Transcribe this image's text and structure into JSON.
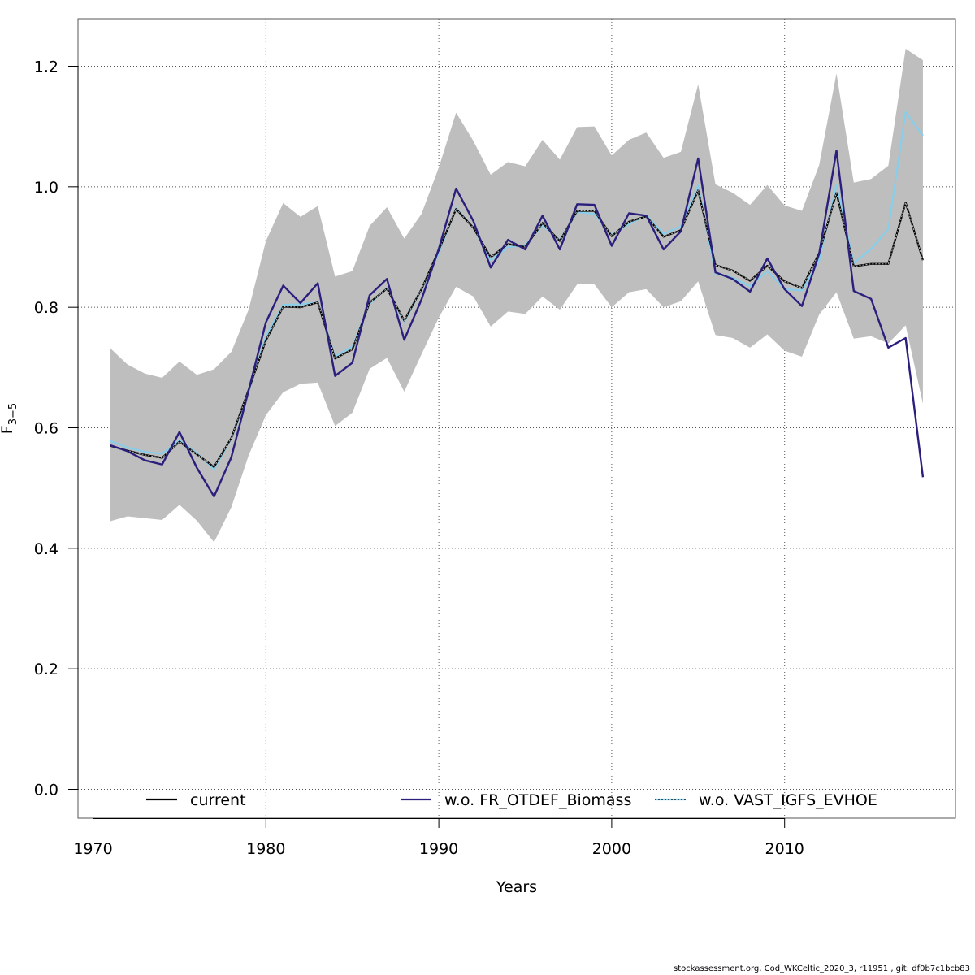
{
  "chart_data": {
    "type": "line",
    "xlabel": "Years",
    "ylabel": "F",
    "ylabel_sub": "3−5",
    "xlim": [
      1970,
      2020
    ],
    "ylim": [
      0.0,
      1.25
    ],
    "x_ticks": [
      1970,
      1980,
      1990,
      2000,
      2010
    ],
    "x_tick_labels": [
      "1970",
      "1980",
      "1990",
      "2000",
      "2010"
    ],
    "y_ticks": [
      0.0,
      0.2,
      0.4,
      0.6,
      0.8,
      1.0,
      1.2
    ],
    "y_tick_labels": [
      "0.0",
      "0.2",
      "0.4",
      "0.6",
      "0.8",
      "1.0",
      "1.2"
    ],
    "grid": true,
    "legend_position": "bottom",
    "x": [
      1971,
      1972,
      1973,
      1974,
      1975,
      1976,
      1977,
      1978,
      1979,
      1980,
      1981,
      1982,
      1983,
      1984,
      1985,
      1986,
      1987,
      1988,
      1989,
      1990,
      1991,
      1992,
      1993,
      1994,
      1995,
      1996,
      1997,
      1998,
      1999,
      2000,
      2001,
      2002,
      2003,
      2004,
      2005,
      2006,
      2007,
      2008,
      2009,
      2010,
      2011,
      2012,
      2013,
      2014,
      2015,
      2016,
      2017,
      2018
    ],
    "band": {
      "color": "#bebebe",
      "upper": [
        0.732,
        0.705,
        0.69,
        0.683,
        0.71,
        0.688,
        0.697,
        0.726,
        0.796,
        0.91,
        0.973,
        0.95,
        0.968,
        0.851,
        0.86,
        0.935,
        0.966,
        0.914,
        0.955,
        1.032,
        1.123,
        1.076,
        1.02,
        1.041,
        1.034,
        1.078,
        1.045,
        1.099,
        1.1,
        1.052,
        1.078,
        1.09,
        1.048,
        1.058,
        1.17,
        1.004,
        0.99,
        0.97,
        1.003,
        0.969,
        0.96,
        1.036,
        1.188,
        1.007,
        1.013,
        1.035,
        1.229,
        1.21
      ],
      "lower": [
        0.445,
        0.453,
        0.45,
        0.447,
        0.472,
        0.446,
        0.41,
        0.468,
        0.554,
        0.621,
        0.659,
        0.673,
        0.675,
        0.603,
        0.625,
        0.698,
        0.716,
        0.66,
        0.722,
        0.783,
        0.834,
        0.818,
        0.768,
        0.793,
        0.789,
        0.818,
        0.796,
        0.838,
        0.838,
        0.8,
        0.825,
        0.83,
        0.8,
        0.81,
        0.843,
        0.754,
        0.749,
        0.733,
        0.755,
        0.728,
        0.718,
        0.788,
        0.825,
        0.748,
        0.752,
        0.74,
        0.77,
        0.64
      ]
    },
    "series": [
      {
        "name": "current",
        "color": "#000000",
        "dash": "solid",
        "values": [
          0.57,
          0.562,
          0.555,
          0.55,
          0.577,
          0.556,
          0.535,
          0.583,
          0.663,
          0.745,
          0.801,
          0.8,
          0.808,
          0.715,
          0.73,
          0.808,
          0.831,
          0.778,
          0.83,
          0.895,
          0.963,
          0.932,
          0.883,
          0.905,
          0.9,
          0.94,
          0.91,
          0.96,
          0.96,
          0.918,
          0.942,
          0.951,
          0.917,
          0.928,
          0.994,
          0.87,
          0.861,
          0.844,
          0.869,
          0.843,
          0.832,
          0.89,
          0.99,
          0.868,
          0.872,
          0.872,
          0.974,
          0.878
        ]
      },
      {
        "name": "w.o. FR_OTDEF_Biomass",
        "color": "#2b1f7e",
        "dash": "solid",
        "values": [
          0.571,
          0.561,
          0.546,
          0.539,
          0.593,
          0.534,
          0.486,
          0.551,
          0.662,
          0.775,
          0.836,
          0.807,
          0.84,
          0.686,
          0.708,
          0.82,
          0.847,
          0.746,
          0.813,
          0.897,
          0.997,
          0.943,
          0.866,
          0.912,
          0.896,
          0.952,
          0.896,
          0.971,
          0.97,
          0.902,
          0.956,
          0.952,
          0.896,
          0.926,
          1.047,
          0.858,
          0.847,
          0.826,
          0.881,
          0.83,
          0.802,
          0.889,
          1.06,
          0.827,
          0.814,
          0.733,
          0.749,
          0.518
        ]
      },
      {
        "name": "w.o. VAST_IGFS_EVHOE",
        "color": "#87ceeb",
        "dash": "solid",
        "values": [
          0.578,
          0.567,
          0.56,
          0.557,
          0.579,
          0.558,
          0.531,
          0.582,
          0.66,
          0.752,
          0.804,
          0.805,
          0.808,
          0.718,
          0.735,
          0.806,
          0.832,
          0.776,
          0.829,
          0.89,
          0.965,
          0.932,
          0.878,
          0.9,
          0.903,
          0.936,
          0.912,
          0.958,
          0.955,
          0.92,
          0.938,
          0.953,
          0.922,
          0.934,
          1.002,
          0.856,
          0.849,
          0.835,
          0.86,
          0.83,
          0.828,
          0.878,
          1.003,
          0.873,
          0.897,
          0.93,
          1.124,
          1.085
        ]
      }
    ],
    "legend": [
      {
        "label": "current",
        "color": "#000000",
        "style": "solid"
      },
      {
        "label": "w.o. FR_OTDEF_Biomass",
        "color": "#2b1f7e",
        "style": "solid"
      },
      {
        "label": "w.o. VAST_IGFS_EVHOE",
        "color": "#87ceeb",
        "style": "dotted-overlay"
      }
    ]
  },
  "footer": {
    "text": "stockassessment.org, Cod_WKCeltic_2020_3, r11951 , git: df0b7c1bcb83"
  }
}
